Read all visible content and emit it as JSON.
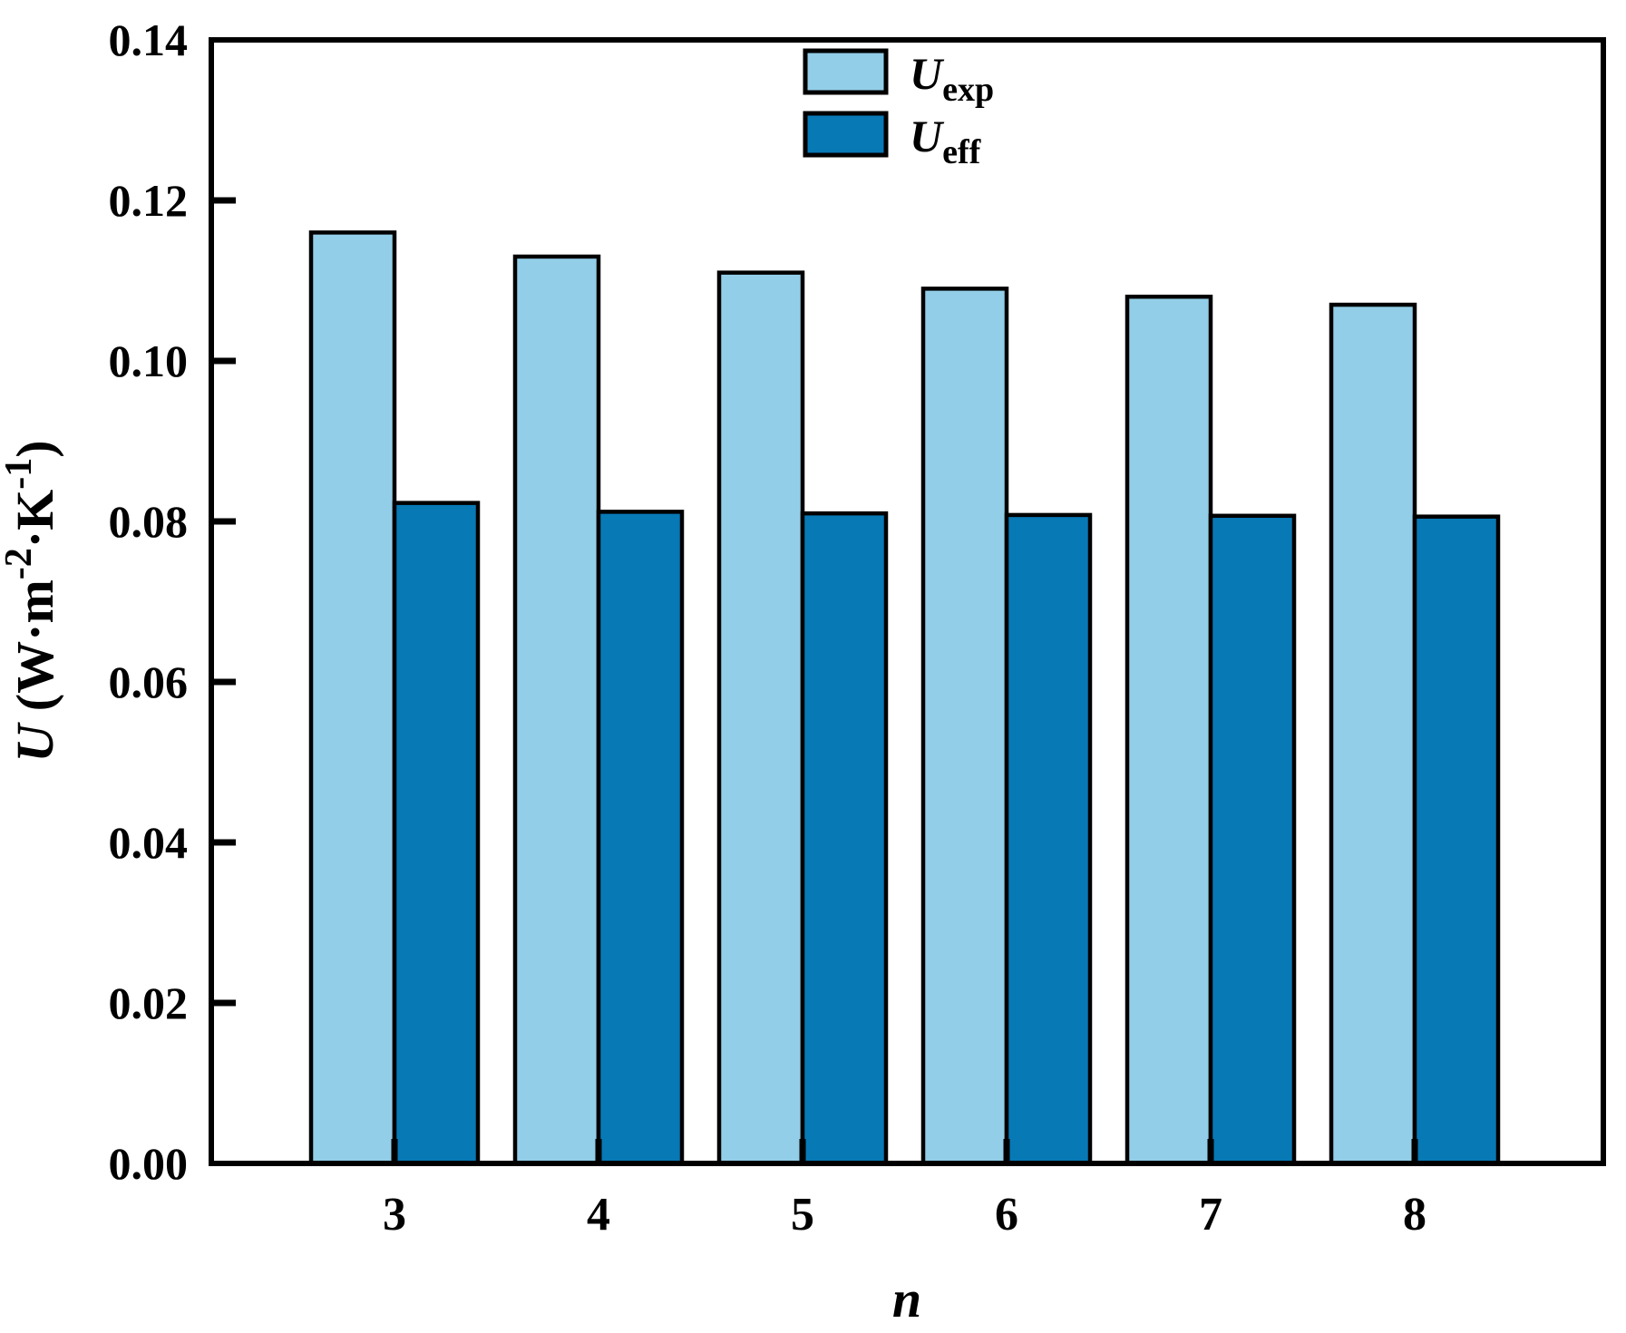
{
  "chart_data": {
    "type": "bar",
    "title": "",
    "xlabel": "n",
    "ylabel_plain": "U (W·m-2·K-1)",
    "ylabel_parts": [
      {
        "t": "U",
        "s": "i"
      },
      {
        "t": " (W·m",
        "s": "n"
      },
      {
        "t": "-2",
        "s": "sup"
      },
      {
        "t": "·K",
        "s": "n"
      },
      {
        "t": "-1",
        "s": "sup"
      },
      {
        "t": ")",
        "s": "n"
      }
    ],
    "categories": [
      "3",
      "4",
      "5",
      "6",
      "7",
      "8"
    ],
    "series": [
      {
        "name": "U_exp",
        "name_parts": [
          {
            "t": "U",
            "s": "i"
          },
          {
            "t": "exp",
            "s": "sub"
          }
        ],
        "color": "#92CEE8",
        "values": [
          0.116,
          0.113,
          0.111,
          0.109,
          0.108,
          0.107
        ]
      },
      {
        "name": "U_eff",
        "name_parts": [
          {
            "t": "U",
            "s": "i"
          },
          {
            "t": "eff",
            "s": "sub"
          }
        ],
        "color": "#0779B5",
        "values": [
          0.0823,
          0.0812,
          0.081,
          0.0808,
          0.0807,
          0.0806
        ]
      }
    ],
    "ylim": [
      0,
      0.14
    ],
    "ytick_values": [
      0,
      0.02,
      0.04,
      0.06,
      0.08,
      0.1,
      0.12,
      0.14
    ],
    "ytick_labels": [
      "0.00",
      "0.02",
      "0.04",
      "0.06",
      "0.08",
      "0.10",
      "0.12",
      "0.14"
    ],
    "grid": "off",
    "legend_position": "top-center",
    "axis_color": "#000000",
    "bar_edge_color": "#000000"
  }
}
